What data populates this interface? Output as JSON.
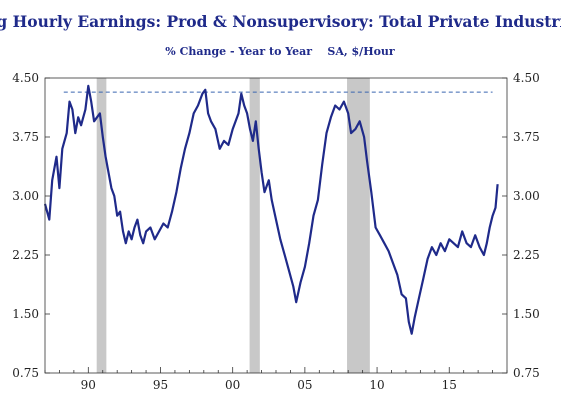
{
  "chart_data": {
    "type": "line",
    "title": "Avg Hourly Earnings: Prod & Nonsupervisory: Total Private Industries",
    "subtitle": "% Change - Year to Year    SA, $/Hour",
    "xlabel": "",
    "ylabel": "",
    "x_ticks": [
      {
        "year": 1990,
        "label": "90"
      },
      {
        "year": 1995,
        "label": "95"
      },
      {
        "year": 2000,
        "label": "00"
      },
      {
        "year": 2005,
        "label": "05"
      },
      {
        "year": 2010,
        "label": "10"
      },
      {
        "year": 2015,
        "label": "15"
      }
    ],
    "y_ticks": [
      "0.75",
      "1.50",
      "2.25",
      "3.00",
      "3.75",
      "4.50"
    ],
    "ylim": [
      0.75,
      4.5
    ],
    "xlim": [
      1987.0,
      2019.0
    ],
    "reference_line": {
      "value": 4.32,
      "style": "dashed",
      "from": 1988.3,
      "to": 2018.0
    },
    "recessions": [
      {
        "start": 1990.58,
        "end": 1991.25
      },
      {
        "start": 2001.17,
        "end": 2001.88
      },
      {
        "start": 2007.92,
        "end": 2009.5
      }
    ],
    "series": [
      {
        "color": "#1f2a8a",
        "points": [
          [
            1987.0,
            2.9
          ],
          [
            1987.3,
            2.7
          ],
          [
            1987.5,
            3.2
          ],
          [
            1987.8,
            3.5
          ],
          [
            1988.0,
            3.1
          ],
          [
            1988.2,
            3.6
          ],
          [
            1988.5,
            3.8
          ],
          [
            1988.7,
            4.2
          ],
          [
            1988.9,
            4.1
          ],
          [
            1989.1,
            3.8
          ],
          [
            1989.3,
            4.0
          ],
          [
            1989.5,
            3.9
          ],
          [
            1989.8,
            4.1
          ],
          [
            1990.0,
            4.4
          ],
          [
            1990.2,
            4.2
          ],
          [
            1990.4,
            3.95
          ],
          [
            1990.6,
            4.0
          ],
          [
            1990.8,
            4.05
          ],
          [
            1991.0,
            3.75
          ],
          [
            1991.2,
            3.5
          ],
          [
            1991.4,
            3.3
          ],
          [
            1991.6,
            3.1
          ],
          [
            1991.8,
            3.0
          ],
          [
            1992.0,
            2.75
          ],
          [
            1992.2,
            2.8
          ],
          [
            1992.4,
            2.55
          ],
          [
            1992.6,
            2.4
          ],
          [
            1992.8,
            2.55
          ],
          [
            1993.0,
            2.45
          ],
          [
            1993.2,
            2.6
          ],
          [
            1993.4,
            2.7
          ],
          [
            1993.6,
            2.5
          ],
          [
            1993.8,
            2.4
          ],
          [
            1994.0,
            2.55
          ],
          [
            1994.3,
            2.6
          ],
          [
            1994.6,
            2.45
          ],
          [
            1994.9,
            2.55
          ],
          [
            1995.2,
            2.65
          ],
          [
            1995.5,
            2.6
          ],
          [
            1995.8,
            2.8
          ],
          [
            1996.1,
            3.05
          ],
          [
            1996.4,
            3.35
          ],
          [
            1996.7,
            3.6
          ],
          [
            1997.0,
            3.8
          ],
          [
            1997.3,
            4.05
          ],
          [
            1997.6,
            4.15
          ],
          [
            1997.9,
            4.3
          ],
          [
            1998.1,
            4.35
          ],
          [
            1998.3,
            4.05
          ],
          [
            1998.5,
            3.95
          ],
          [
            1998.8,
            3.85
          ],
          [
            1999.1,
            3.6
          ],
          [
            1999.4,
            3.7
          ],
          [
            1999.7,
            3.65
          ],
          [
            2000.0,
            3.85
          ],
          [
            2000.2,
            3.95
          ],
          [
            2000.4,
            4.05
          ],
          [
            2000.6,
            4.3
          ],
          [
            2000.8,
            4.15
          ],
          [
            2001.0,
            4.05
          ],
          [
            2001.2,
            3.85
          ],
          [
            2001.4,
            3.7
          ],
          [
            2001.6,
            3.95
          ],
          [
            2001.8,
            3.6
          ],
          [
            2002.0,
            3.3
          ],
          [
            2002.2,
            3.05
          ],
          [
            2002.5,
            3.2
          ],
          [
            2002.7,
            2.95
          ],
          [
            2003.0,
            2.7
          ],
          [
            2003.3,
            2.45
          ],
          [
            2003.6,
            2.25
          ],
          [
            2003.9,
            2.05
          ],
          [
            2004.2,
            1.85
          ],
          [
            2004.4,
            1.65
          ],
          [
            2004.7,
            1.9
          ],
          [
            2005.0,
            2.1
          ],
          [
            2005.3,
            2.4
          ],
          [
            2005.6,
            2.75
          ],
          [
            2005.9,
            2.95
          ],
          [
            2006.2,
            3.4
          ],
          [
            2006.5,
            3.8
          ],
          [
            2006.8,
            4.0
          ],
          [
            2007.1,
            4.15
          ],
          [
            2007.4,
            4.1
          ],
          [
            2007.7,
            4.2
          ],
          [
            2008.0,
            4.05
          ],
          [
            2008.2,
            3.8
          ],
          [
            2008.5,
            3.85
          ],
          [
            2008.8,
            3.95
          ],
          [
            2009.1,
            3.75
          ],
          [
            2009.3,
            3.45
          ],
          [
            2009.6,
            3.05
          ],
          [
            2009.9,
            2.6
          ],
          [
            2010.2,
            2.5
          ],
          [
            2010.5,
            2.4
          ],
          [
            2010.8,
            2.3
          ],
          [
            2011.1,
            2.15
          ],
          [
            2011.4,
            2.0
          ],
          [
            2011.7,
            1.75
          ],
          [
            2012.0,
            1.7
          ],
          [
            2012.2,
            1.4
          ],
          [
            2012.4,
            1.25
          ],
          [
            2012.6,
            1.45
          ],
          [
            2012.9,
            1.7
          ],
          [
            2013.2,
            1.95
          ],
          [
            2013.5,
            2.2
          ],
          [
            2013.8,
            2.35
          ],
          [
            2014.1,
            2.25
          ],
          [
            2014.4,
            2.4
          ],
          [
            2014.7,
            2.3
          ],
          [
            2015.0,
            2.45
          ],
          [
            2015.3,
            2.4
          ],
          [
            2015.6,
            2.35
          ],
          [
            2015.9,
            2.55
          ],
          [
            2016.2,
            2.4
          ],
          [
            2016.5,
            2.35
          ],
          [
            2016.8,
            2.5
          ],
          [
            2017.1,
            2.35
          ],
          [
            2017.4,
            2.25
          ],
          [
            2017.6,
            2.4
          ],
          [
            2017.8,
            2.6
          ],
          [
            2018.0,
            2.75
          ],
          [
            2018.2,
            2.85
          ],
          [
            2018.35,
            3.15
          ]
        ]
      }
    ]
  }
}
